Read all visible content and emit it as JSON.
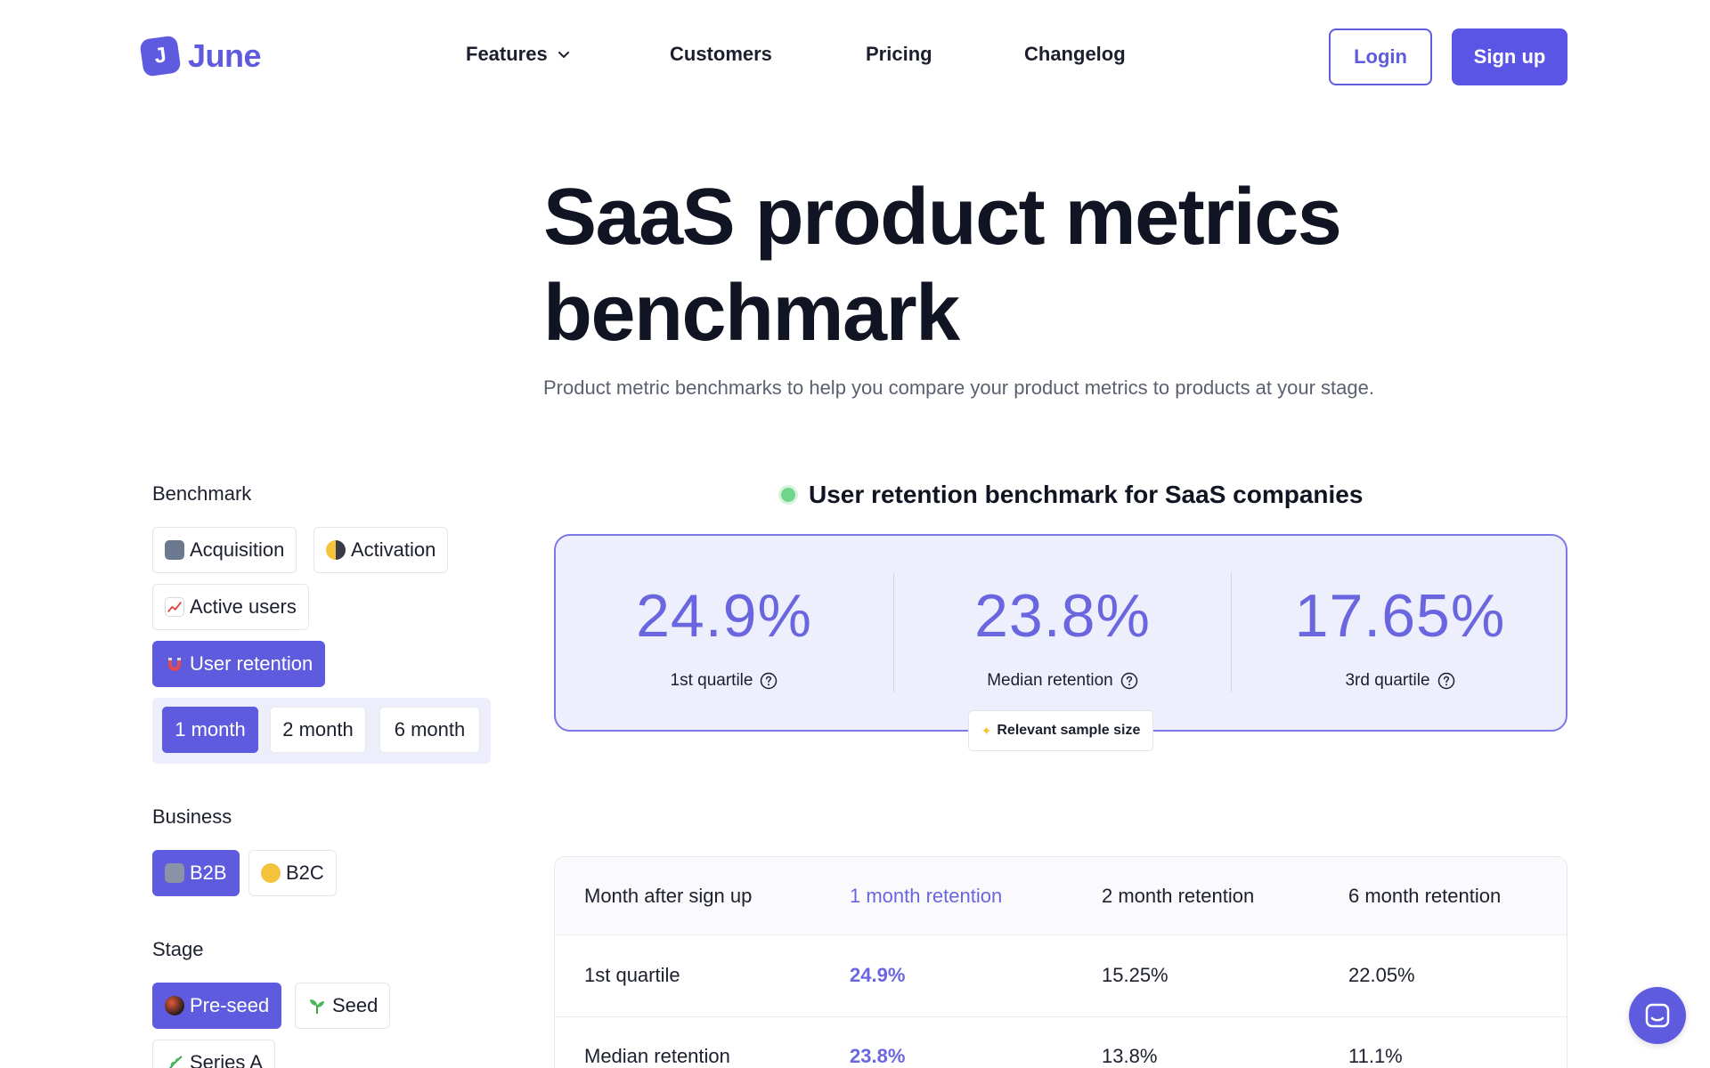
{
  "header": {
    "logo_text": "June",
    "nav": [
      {
        "label": "Features"
      },
      {
        "label": "Customers"
      },
      {
        "label": "Pricing"
      },
      {
        "label": "Changelog"
      }
    ],
    "login_label": "Login",
    "signup_label": "Sign up"
  },
  "hero": {
    "title": "SaaS product metrics benchmark",
    "subtitle": "Product metric benchmarks to help you compare your product metrics to products at your stage."
  },
  "sidebar": {
    "benchmark_label": "Benchmark",
    "benchmark_options": [
      {
        "label": "Acquisition",
        "icon": "new-badge-icon"
      },
      {
        "label": "Activation",
        "icon": "half-moon-icon"
      },
      {
        "label": "Active users",
        "icon": "chart-up-icon"
      },
      {
        "label": "User retention",
        "icon": "magnet-icon",
        "selected": true
      }
    ],
    "months": [
      {
        "label": "1 month",
        "selected": true
      },
      {
        "label": "2 month"
      },
      {
        "label": "6 month"
      }
    ],
    "business_label": "Business",
    "business_options": [
      {
        "label": "B2B",
        "icon": "office-building-icon",
        "selected": true
      },
      {
        "label": "B2C",
        "icon": "smiley-icon"
      }
    ],
    "stage_label": "Stage",
    "stage_options": [
      {
        "label": "Pre-seed",
        "icon": "bowling-ball-icon",
        "selected": true
      },
      {
        "label": "Seed",
        "icon": "seedling-icon"
      },
      {
        "label": "Series A",
        "icon": "herb-icon"
      }
    ]
  },
  "benchmark": {
    "title": "User retention benchmark for SaaS companies",
    "stats": [
      {
        "value": "24.9%",
        "label": "1st quartile"
      },
      {
        "value": "23.8%",
        "label": "Median retention"
      },
      {
        "value": "17.65%",
        "label": "3rd quartile"
      }
    ],
    "sample_label": "Relevant sample size"
  },
  "table": {
    "headers": [
      "Month after sign up",
      "1 month retention",
      "2 month retention",
      "6 month retention"
    ],
    "rows": [
      [
        "1st quartile",
        "24.9%",
        "15.25%",
        "22.05%"
      ],
      [
        "Median retention",
        "23.8%",
        "13.8%",
        "11.1%"
      ]
    ]
  },
  "colors": {
    "accent": "#5f5bdf",
    "card_bg": "#eeeffc",
    "text": "#111422"
  }
}
